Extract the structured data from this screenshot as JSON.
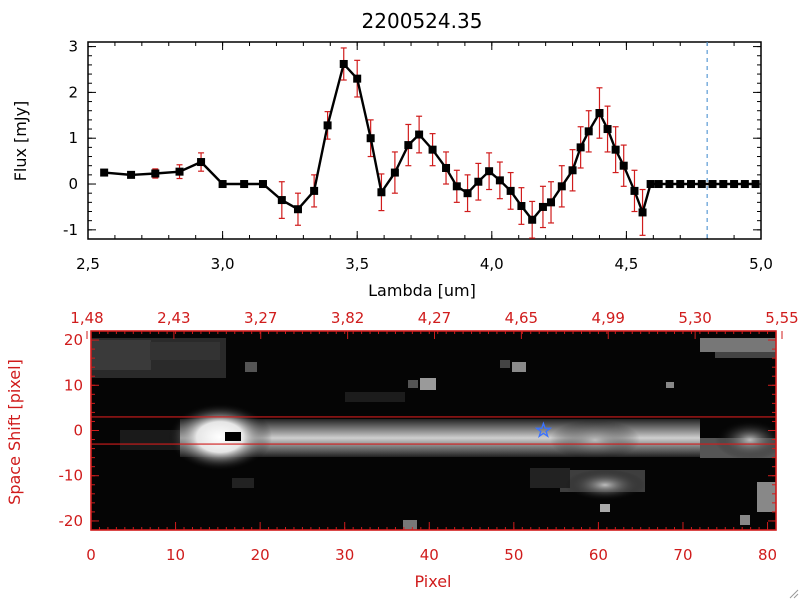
{
  "chart_data": [
    {
      "type": "line",
      "title": "2200524.35",
      "xlabel": "Lambda [um]",
      "ylabel": "Flux [mJy]",
      "xlim": [
        2.5,
        5.0
      ],
      "ylim": [
        -1.2,
        3.1
      ],
      "xticks": [
        "2.5",
        "3.0",
        "3.5",
        "4.0",
        "4.5",
        "5.0"
      ],
      "yticks": [
        "3",
        "2",
        "1",
        "0",
        "-1"
      ],
      "vline_x": 4.8,
      "series": [
        {
          "x": [
            2.56,
            2.66,
            2.75,
            2.84,
            2.92,
            3.0,
            3.08,
            3.15,
            3.22,
            3.28,
            3.34,
            3.39,
            3.45,
            3.5,
            3.55,
            3.59,
            3.64,
            3.69,
            3.73,
            3.78,
            3.83,
            3.87,
            3.91,
            3.95,
            3.99,
            4.03,
            4.07,
            4.11,
            4.15,
            4.19,
            4.22,
            4.26,
            4.3,
            4.33,
            4.36,
            4.4,
            4.43,
            4.46,
            4.49,
            4.53,
            4.56,
            4.59,
            4.62,
            4.66,
            4.7,
            4.74,
            4.78,
            4.82,
            4.86,
            4.9,
            4.94,
            4.98
          ],
          "y": [
            0.25,
            0.2,
            0.23,
            0.27,
            0.48,
            0.0,
            0.0,
            0.0,
            -0.35,
            -0.55,
            -0.15,
            1.28,
            2.62,
            2.3,
            1.0,
            -0.18,
            0.25,
            0.85,
            1.08,
            0.75,
            0.35,
            -0.05,
            -0.2,
            0.05,
            0.28,
            0.08,
            -0.15,
            -0.48,
            -0.78,
            -0.5,
            -0.4,
            -0.05,
            0.3,
            0.8,
            1.15,
            1.55,
            1.2,
            0.75,
            0.4,
            -0.15,
            -0.62,
            0.0,
            0.0,
            0.0,
            0.0,
            0.0,
            0.0,
            0.0,
            0.0,
            0.0,
            0.0,
            0.0
          ],
          "err": [
            0.05,
            0.05,
            0.1,
            0.15,
            0.2,
            0.0,
            0.0,
            0.0,
            0.4,
            0.35,
            0.35,
            0.3,
            0.35,
            0.4,
            0.4,
            0.4,
            0.45,
            0.45,
            0.4,
            0.35,
            0.35,
            0.35,
            0.4,
            0.4,
            0.4,
            0.4,
            0.4,
            0.4,
            0.4,
            0.45,
            0.45,
            0.45,
            0.45,
            0.45,
            0.45,
            0.55,
            0.5,
            0.5,
            0.45,
            0.45,
            0.5,
            0.0,
            0.0,
            0.0,
            0.0,
            0.0,
            0.0,
            0.0,
            0.0,
            0.0,
            0.0,
            0.0
          ]
        }
      ]
    },
    {
      "type": "heatmap",
      "xlabel": "Pixel",
      "ylabel": "Space Shift [pixel]",
      "xlim": [
        0,
        81
      ],
      "ylim": [
        -22,
        22
      ],
      "xticks": [
        "0",
        "10",
        "20",
        "30",
        "40",
        "50",
        "60",
        "70",
        "80"
      ],
      "yticks": [
        "20",
        "10",
        "0",
        "-10",
        "-20"
      ],
      "top_ticks": [
        "1.48",
        "2.43",
        "3.27",
        "3.82",
        "4.27",
        "4.65",
        "4.99",
        "5.30",
        "5.55"
      ],
      "aperture": [
        -3,
        3
      ],
      "marker_star_x": 53.5,
      "marker_black_x": 17
    }
  ],
  "colors": {
    "axis_red": "#d01c1c",
    "error_red": "#d01c1c",
    "dashed_line": "#5a9bd5",
    "star": "#3b73ff"
  }
}
